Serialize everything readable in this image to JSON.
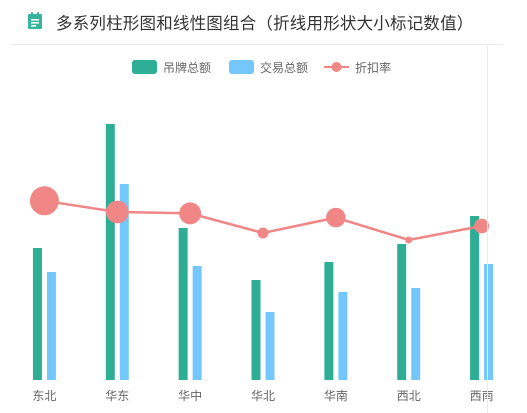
{
  "header": {
    "icon": "document-icon",
    "title": "多系列柱形图和线性图组合（折线用形状大小标记数值）"
  },
  "colors": {
    "accent": "#2fae96",
    "series_1": "#2fae96",
    "series_2": "#74c7fb",
    "line": "#f08686",
    "axis_label": "#666666"
  },
  "chart_data": {
    "type": "bar",
    "categories": [
      "东北",
      "华东",
      "华中",
      "华北",
      "华南",
      "西北",
      "西南"
    ],
    "series": [
      {
        "name": "吊牌总额",
        "type": "bar",
        "values": [
          66,
          128,
          76,
          50,
          59,
          68,
          82
        ]
      },
      {
        "name": "交易总额",
        "type": "bar",
        "values": [
          54,
          98,
          57,
          34,
          44,
          46,
          58
        ]
      },
      {
        "name": "折扣率",
        "type": "line",
        "values": [
          0.64,
          0.6,
          0.595,
          0.525,
          0.58,
          0.5,
          0.55
        ],
        "marker_size_encodes_value": true
      }
    ],
    "ylim": [
      0,
      135
    ],
    "line_ylim": [
      0,
      1
    ],
    "legend_position": "top-center",
    "grid": false,
    "xlabel": "",
    "ylabel": ""
  }
}
